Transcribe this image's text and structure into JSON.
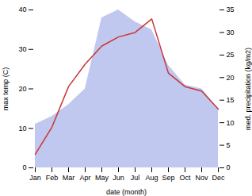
{
  "chart_data": {
    "type": "area",
    "categories": [
      "Jan",
      "Feb",
      "Mar",
      "Apr",
      "May",
      "Jun",
      "Jul",
      "Aug",
      "Sep",
      "Oct",
      "Nov",
      "Dec"
    ],
    "xlabel": "date (month)",
    "ylabel": "max temp (C)",
    "y2label": "med. precipitation (kg/m2)",
    "series": [
      {
        "type": "area",
        "color": "#c0c8f0",
        "values": [
          11,
          13,
          16,
          20,
          38,
          40,
          37,
          35,
          26,
          21,
          20,
          15
        ]
      },
      {
        "type": "line",
        "axis": "y2",
        "color": "#cc3333",
        "values": [
          3,
          9,
          18,
          23,
          27,
          29,
          30,
          33,
          21,
          18,
          17,
          13
        ]
      }
    ],
    "ylim": [
      0,
      40
    ],
    "yticks": [
      0,
      10,
      20,
      30,
      40
    ],
    "y2lim": [
      0,
      35
    ],
    "y2ticks": [
      0,
      5,
      10,
      15,
      20,
      25,
      30,
      35
    ]
  }
}
